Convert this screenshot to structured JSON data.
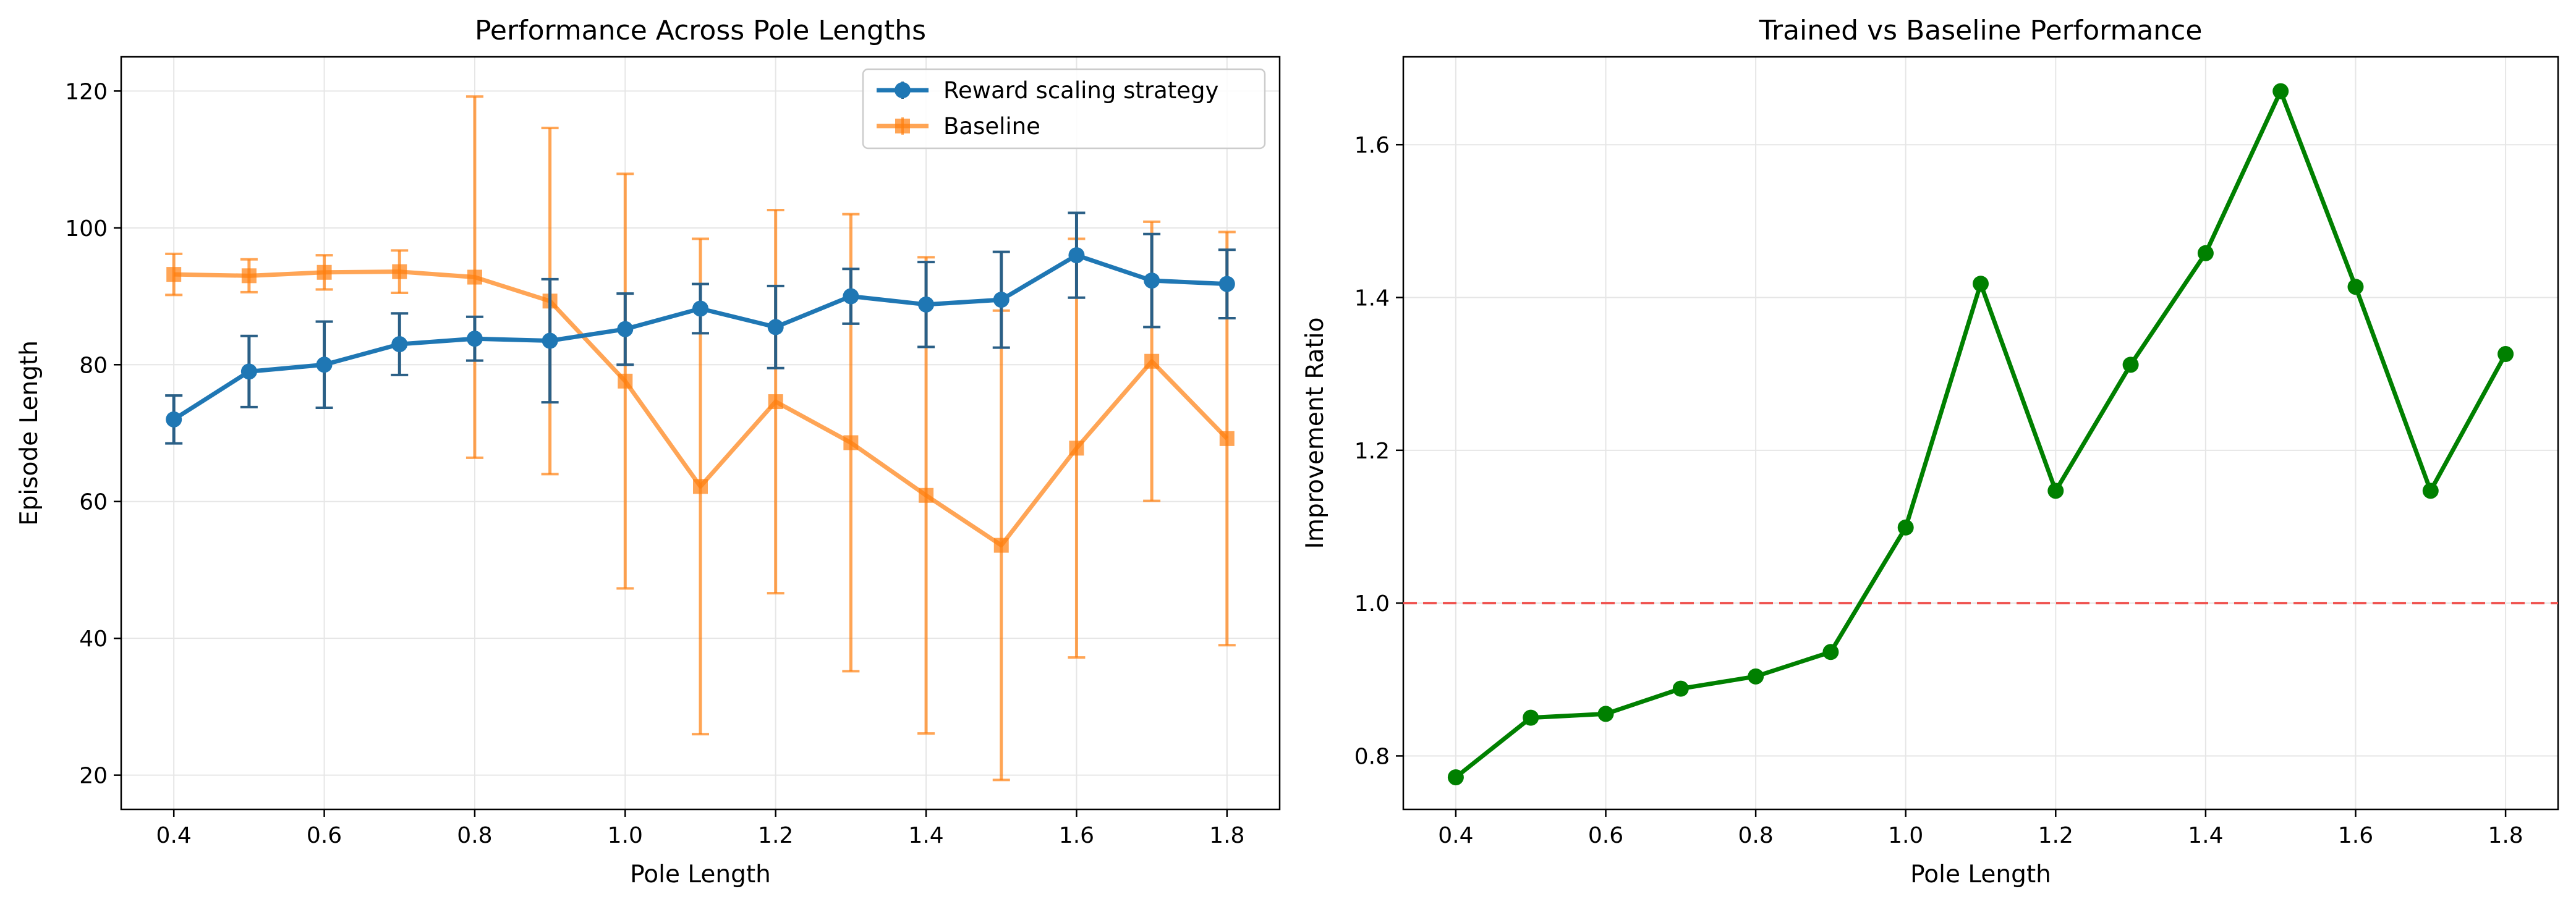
{
  "chart_data": [
    {
      "type": "line",
      "title": "Performance Across Pole Lengths",
      "xlabel": "Pole Length",
      "ylabel": "Episode Length",
      "xlim": [
        0.33,
        1.87
      ],
      "ylim": [
        15,
        125
      ],
      "xticks": [
        0.4,
        0.6,
        0.8,
        1.0,
        1.2,
        1.4,
        1.6,
        1.8
      ],
      "xtick_labels": [
        "0.4",
        "0.6",
        "0.8",
        "1.0",
        "1.2",
        "1.4",
        "1.6",
        "1.8"
      ],
      "yticks": [
        20,
        40,
        60,
        80,
        100,
        120
      ],
      "ytick_labels": [
        "20",
        "40",
        "60",
        "80",
        "100",
        "120"
      ],
      "grid": true,
      "legend_position": "top-right",
      "x": [
        0.4,
        0.5,
        0.6,
        0.7,
        0.8,
        0.9,
        1.0,
        1.1,
        1.2,
        1.3,
        1.4,
        1.5,
        1.6,
        1.7,
        1.8
      ],
      "series": [
        {
          "name": "Reward scaling strategy",
          "color": "#1f77b4",
          "marker": "circle",
          "values": [
            72.0,
            79.0,
            80.0,
            83.0,
            83.8,
            83.5,
            85.2,
            88.2,
            85.5,
            90.0,
            88.8,
            89.5,
            96.0,
            92.3,
            91.8
          ],
          "err": [
            3.5,
            5.2,
            6.3,
            4.5,
            3.2,
            9.0,
            5.2,
            3.6,
            6.0,
            4.0,
            6.2,
            7.0,
            6.2,
            6.8,
            5.0
          ]
        },
        {
          "name": "Baseline",
          "color": "#ff7f0e",
          "marker": "square",
          "values": [
            93.2,
            93.0,
            93.5,
            93.6,
            92.8,
            89.3,
            77.6,
            62.2,
            74.6,
            68.6,
            60.9,
            53.6,
            67.8,
            80.5,
            69.2
          ],
          "err": [
            3.0,
            2.4,
            2.5,
            3.1,
            26.4,
            25.3,
            30.3,
            36.2,
            28.0,
            33.4,
            34.8,
            34.3,
            30.6,
            20.4,
            30.2
          ]
        }
      ]
    },
    {
      "type": "line",
      "title": "Trained vs Baseline Performance",
      "xlabel": "Pole Length",
      "ylabel": "Improvement Ratio",
      "xlim": [
        0.33,
        1.87
      ],
      "ylim": [
        0.73,
        1.715
      ],
      "xticks": [
        0.4,
        0.6,
        0.8,
        1.0,
        1.2,
        1.4,
        1.6,
        1.8
      ],
      "xtick_labels": [
        "0.4",
        "0.6",
        "0.8",
        "1.0",
        "1.2",
        "1.4",
        "1.6",
        "1.8"
      ],
      "yticks": [
        0.8,
        1.0,
        1.2,
        1.4,
        1.6
      ],
      "ytick_labels": [
        "0.8",
        "1.0",
        "1.2",
        "1.4",
        "1.6"
      ],
      "grid": true,
      "reference_line": {
        "y": 1.0,
        "color": "#ef5350",
        "style": "dashed"
      },
      "x": [
        0.4,
        0.5,
        0.6,
        0.7,
        0.8,
        0.9,
        1.0,
        1.1,
        1.2,
        1.3,
        1.4,
        1.5,
        1.6,
        1.7,
        1.8
      ],
      "series": [
        {
          "color": "#008000",
          "marker": "circle",
          "values": [
            0.772,
            0.85,
            0.855,
            0.888,
            0.904,
            0.936,
            1.099,
            1.418,
            1.147,
            1.312,
            1.458,
            1.67,
            1.414,
            1.147,
            1.326
          ]
        }
      ]
    }
  ]
}
